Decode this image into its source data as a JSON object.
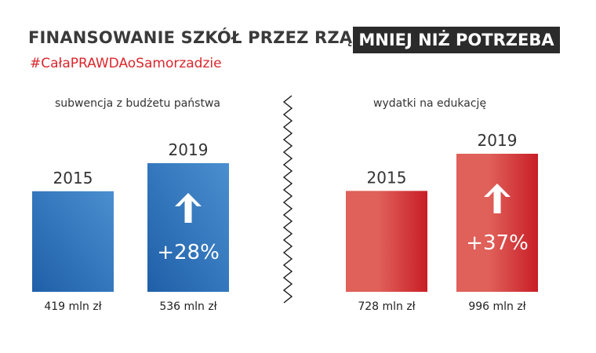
{
  "header": {
    "title": "FINANSOWANIE SZKÓŁ PRZEZ RZĄD",
    "badge": "MNIEJ NIŻ POTRZEBA",
    "hashtag": "#CałaPRAWDAoSamorzadzie"
  },
  "colors": {
    "blue_dark": "#1f5fa8",
    "blue_light": "#4a8fd0",
    "red_dark": "#c81e26",
    "red_light": "#e0605a",
    "hashtag": "#d9262c"
  },
  "chart_data": [
    {
      "type": "bar",
      "title": "subwencja z budżetu państwa",
      "categories": [
        "2015",
        "2019"
      ],
      "values": [
        419,
        536
      ],
      "value_labels": [
        "419 mln zł",
        "536 mln zł"
      ],
      "change_label": "+28%",
      "change_icon": "arrow-up-icon",
      "ylim": [
        0,
        600
      ]
    },
    {
      "type": "bar",
      "title": "wydatki na edukację",
      "categories": [
        "2015",
        "2019"
      ],
      "values": [
        728,
        996
      ],
      "value_labels": [
        "728 mln zł",
        "996 mln zł"
      ],
      "change_label": "+37%",
      "change_icon": "arrow-up-icon",
      "ylim": [
        0,
        1000
      ]
    }
  ]
}
